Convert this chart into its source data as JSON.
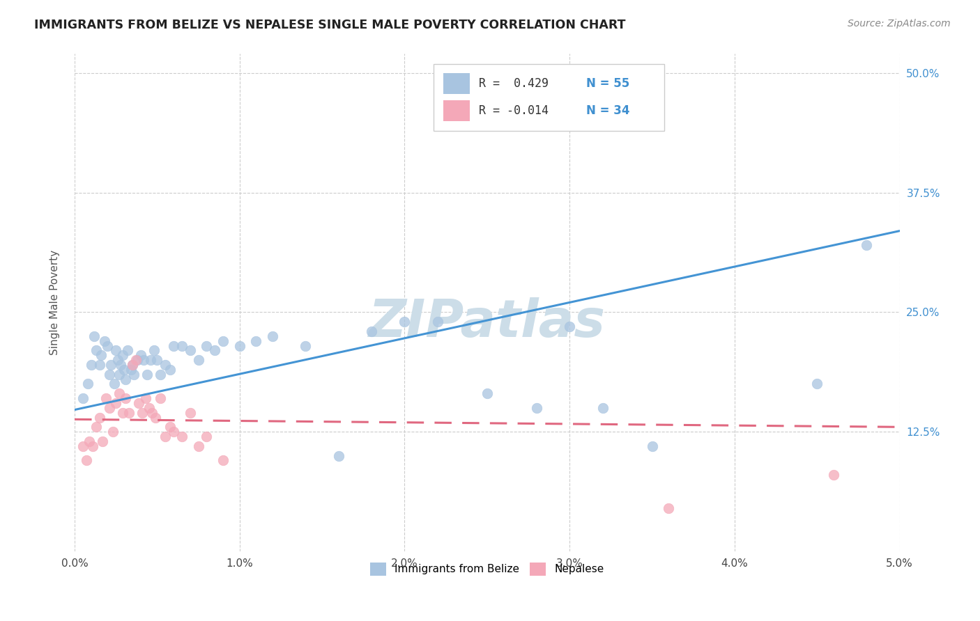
{
  "title": "IMMIGRANTS FROM BELIZE VS NEPALESE SINGLE MALE POVERTY CORRELATION CHART",
  "source": "Source: ZipAtlas.com",
  "ylabel": "Single Male Poverty",
  "ytick_labels": [
    "12.5%",
    "25.0%",
    "37.5%",
    "50.0%"
  ],
  "ytick_values": [
    0.125,
    0.25,
    0.375,
    0.5
  ],
  "legend_blue_r": "R =  0.429",
  "legend_blue_n": "N = 55",
  "legend_pink_r": "R = -0.014",
  "legend_pink_n": "N = 34",
  "legend_blue_label": "Immigrants from Belize",
  "legend_pink_label": "Nepalese",
  "blue_color": "#a8c4e0",
  "pink_color": "#f4a8b8",
  "line_blue": "#4494d4",
  "line_pink": "#e06880",
  "watermark_color": "#ccdde8",
  "blue_dots_x": [
    0.0005,
    0.0008,
    0.001,
    0.0012,
    0.0013,
    0.0015,
    0.0016,
    0.0018,
    0.002,
    0.0021,
    0.0022,
    0.0024,
    0.0025,
    0.0026,
    0.0027,
    0.0028,
    0.0029,
    0.003,
    0.0031,
    0.0032,
    0.0034,
    0.0035,
    0.0036,
    0.0038,
    0.004,
    0.0042,
    0.0044,
    0.0046,
    0.0048,
    0.005,
    0.0052,
    0.0055,
    0.0058,
    0.006,
    0.0065,
    0.007,
    0.0075,
    0.008,
    0.0085,
    0.009,
    0.01,
    0.011,
    0.012,
    0.014,
    0.016,
    0.018,
    0.02,
    0.022,
    0.025,
    0.028,
    0.03,
    0.032,
    0.035,
    0.045,
    0.048
  ],
  "blue_dots_y": [
    0.16,
    0.175,
    0.195,
    0.225,
    0.21,
    0.195,
    0.205,
    0.22,
    0.215,
    0.185,
    0.195,
    0.175,
    0.21,
    0.2,
    0.185,
    0.195,
    0.205,
    0.19,
    0.18,
    0.21,
    0.19,
    0.195,
    0.185,
    0.2,
    0.205,
    0.2,
    0.185,
    0.2,
    0.21,
    0.2,
    0.185,
    0.195,
    0.19,
    0.215,
    0.215,
    0.21,
    0.2,
    0.215,
    0.21,
    0.22,
    0.215,
    0.22,
    0.225,
    0.215,
    0.1,
    0.23,
    0.24,
    0.24,
    0.165,
    0.15,
    0.235,
    0.15,
    0.11,
    0.175,
    0.32
  ],
  "pink_dots_x": [
    0.0005,
    0.0007,
    0.0009,
    0.0011,
    0.0013,
    0.0015,
    0.0017,
    0.0019,
    0.0021,
    0.0023,
    0.0025,
    0.0027,
    0.0029,
    0.0031,
    0.0033,
    0.0035,
    0.0037,
    0.0039,
    0.0041,
    0.0043,
    0.0045,
    0.0047,
    0.0049,
    0.0052,
    0.0055,
    0.0058,
    0.006,
    0.0065,
    0.007,
    0.0075,
    0.008,
    0.009,
    0.036,
    0.046
  ],
  "pink_dots_y": [
    0.11,
    0.095,
    0.115,
    0.11,
    0.13,
    0.14,
    0.115,
    0.16,
    0.15,
    0.125,
    0.155,
    0.165,
    0.145,
    0.16,
    0.145,
    0.195,
    0.2,
    0.155,
    0.145,
    0.16,
    0.15,
    0.145,
    0.14,
    0.16,
    0.12,
    0.13,
    0.125,
    0.12,
    0.145,
    0.11,
    0.12,
    0.095,
    0.045,
    0.08
  ],
  "blue_line_x0": 0.0,
  "blue_line_y0": 0.148,
  "blue_line_x1": 0.05,
  "blue_line_y1": 0.335,
  "pink_line_x0": 0.0,
  "pink_line_y0": 0.138,
  "pink_line_x1": 0.05,
  "pink_line_y1": 0.13,
  "xmin": 0.0,
  "xmax": 0.05,
  "ymin": 0.0,
  "ymax": 0.52
}
